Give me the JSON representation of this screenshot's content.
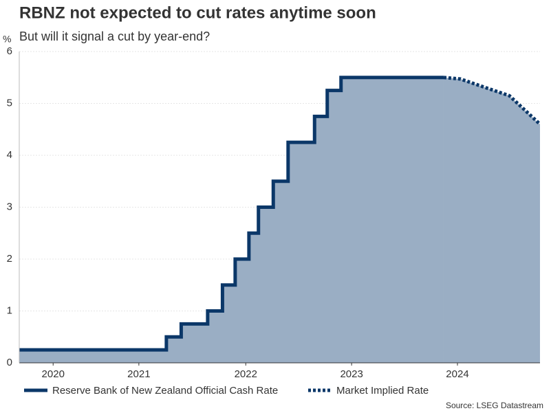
{
  "chart_data": {
    "type": "line",
    "title": "RBNZ not expected to cut rates anytime soon",
    "subtitle": "But will it signal a cut by year-end?",
    "y_label": "%",
    "source": "Source: LSEG Datastream",
    "xlim": [
      2020.36,
      2025.28
    ],
    "xticks": [
      {
        "value": 2020.68,
        "label": "2020"
      },
      {
        "value": 2021.49,
        "label": "2021"
      },
      {
        "value": 2022.5,
        "label": "2022"
      },
      {
        "value": 2023.5,
        "label": "2023"
      },
      {
        "value": 2024.5,
        "label": "2024"
      }
    ],
    "ylim": [
      0,
      6
    ],
    "yticks": [
      0,
      1,
      2,
      3,
      4,
      5,
      6
    ],
    "grid": true,
    "area_color": "#9aaec4",
    "series": [
      {
        "name": "Reserve Bank of New Zealand Official Cash Rate",
        "color": "#0b3768",
        "style": "step",
        "x": [
          2020.36,
          2021.75,
          2021.89,
          2022.14,
          2022.28,
          2022.4,
          2022.53,
          2022.62,
          2022.76,
          2022.9,
          2023.15,
          2023.27,
          2023.4,
          2024.37
        ],
        "values": [
          0.25,
          0.5,
          0.75,
          1.0,
          1.5,
          2.0,
          2.5,
          3.0,
          3.5,
          4.25,
          4.75,
          5.25,
          5.5,
          5.5
        ]
      },
      {
        "name": "Market Implied Rate",
        "color": "#0b3768",
        "style": "dotted",
        "x": [
          2024.37,
          2024.53,
          2024.73,
          2024.99,
          2025.28
        ],
        "values": [
          5.5,
          5.47,
          5.33,
          5.15,
          4.6
        ]
      }
    ]
  }
}
